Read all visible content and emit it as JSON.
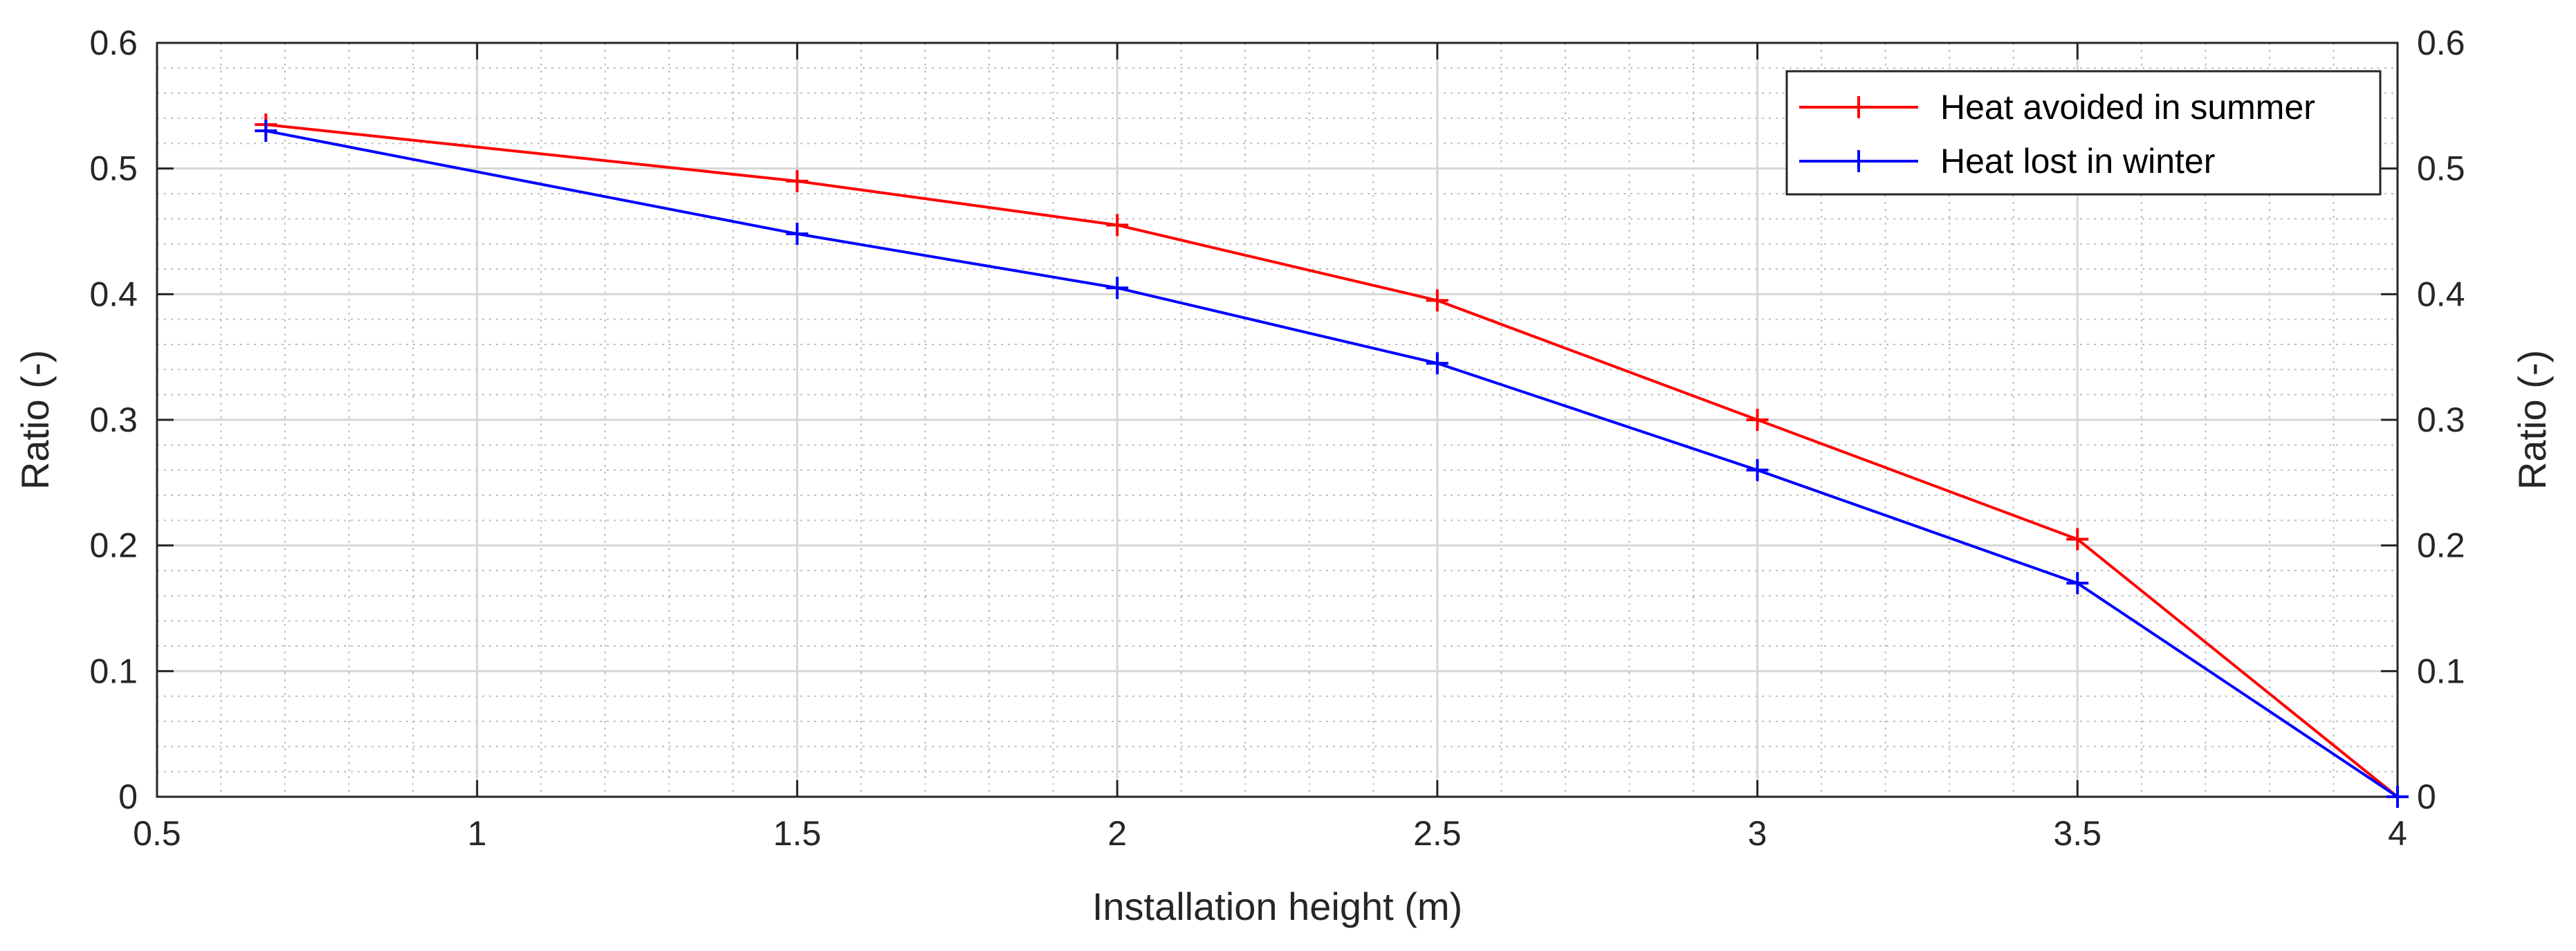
{
  "chart_data": {
    "type": "line",
    "xlabel": "Installation height (m)",
    "ylabel": "Ratio (-)",
    "ylabel_right": "Ratio (-)",
    "xlim": [
      0.5,
      4
    ],
    "ylim": [
      0,
      0.6
    ],
    "xticks": [
      0.5,
      1,
      1.5,
      2,
      2.5,
      3,
      3.5,
      4
    ],
    "xtick_labels": [
      "0.5",
      "1",
      "1.5",
      "2",
      "2.5",
      "3",
      "3.5",
      "4"
    ],
    "yticks": [
      0,
      0.1,
      0.2,
      0.3,
      0.4,
      0.5,
      0.6
    ],
    "ytick_labels": [
      "0",
      "0.1",
      "0.2",
      "0.3",
      "0.4",
      "0.5",
      "0.6"
    ],
    "grid": true,
    "minor_grid": true,
    "legend_position": "top-right",
    "marker": "+",
    "series": [
      {
        "name": "Heat avoided in summer",
        "color": "#ff0000",
        "x": [
          0.67,
          1.5,
          2,
          2.5,
          3,
          3.5,
          4
        ],
        "y": [
          0.535,
          0.49,
          0.455,
          0.395,
          0.3,
          0.205,
          0
        ]
      },
      {
        "name": "Heat lost in winter",
        "color": "#0000ff",
        "x": [
          0.67,
          1.5,
          2,
          2.5,
          3,
          3.5,
          4
        ],
        "y": [
          0.53,
          0.448,
          0.405,
          0.345,
          0.26,
          0.17,
          0
        ]
      }
    ]
  }
}
